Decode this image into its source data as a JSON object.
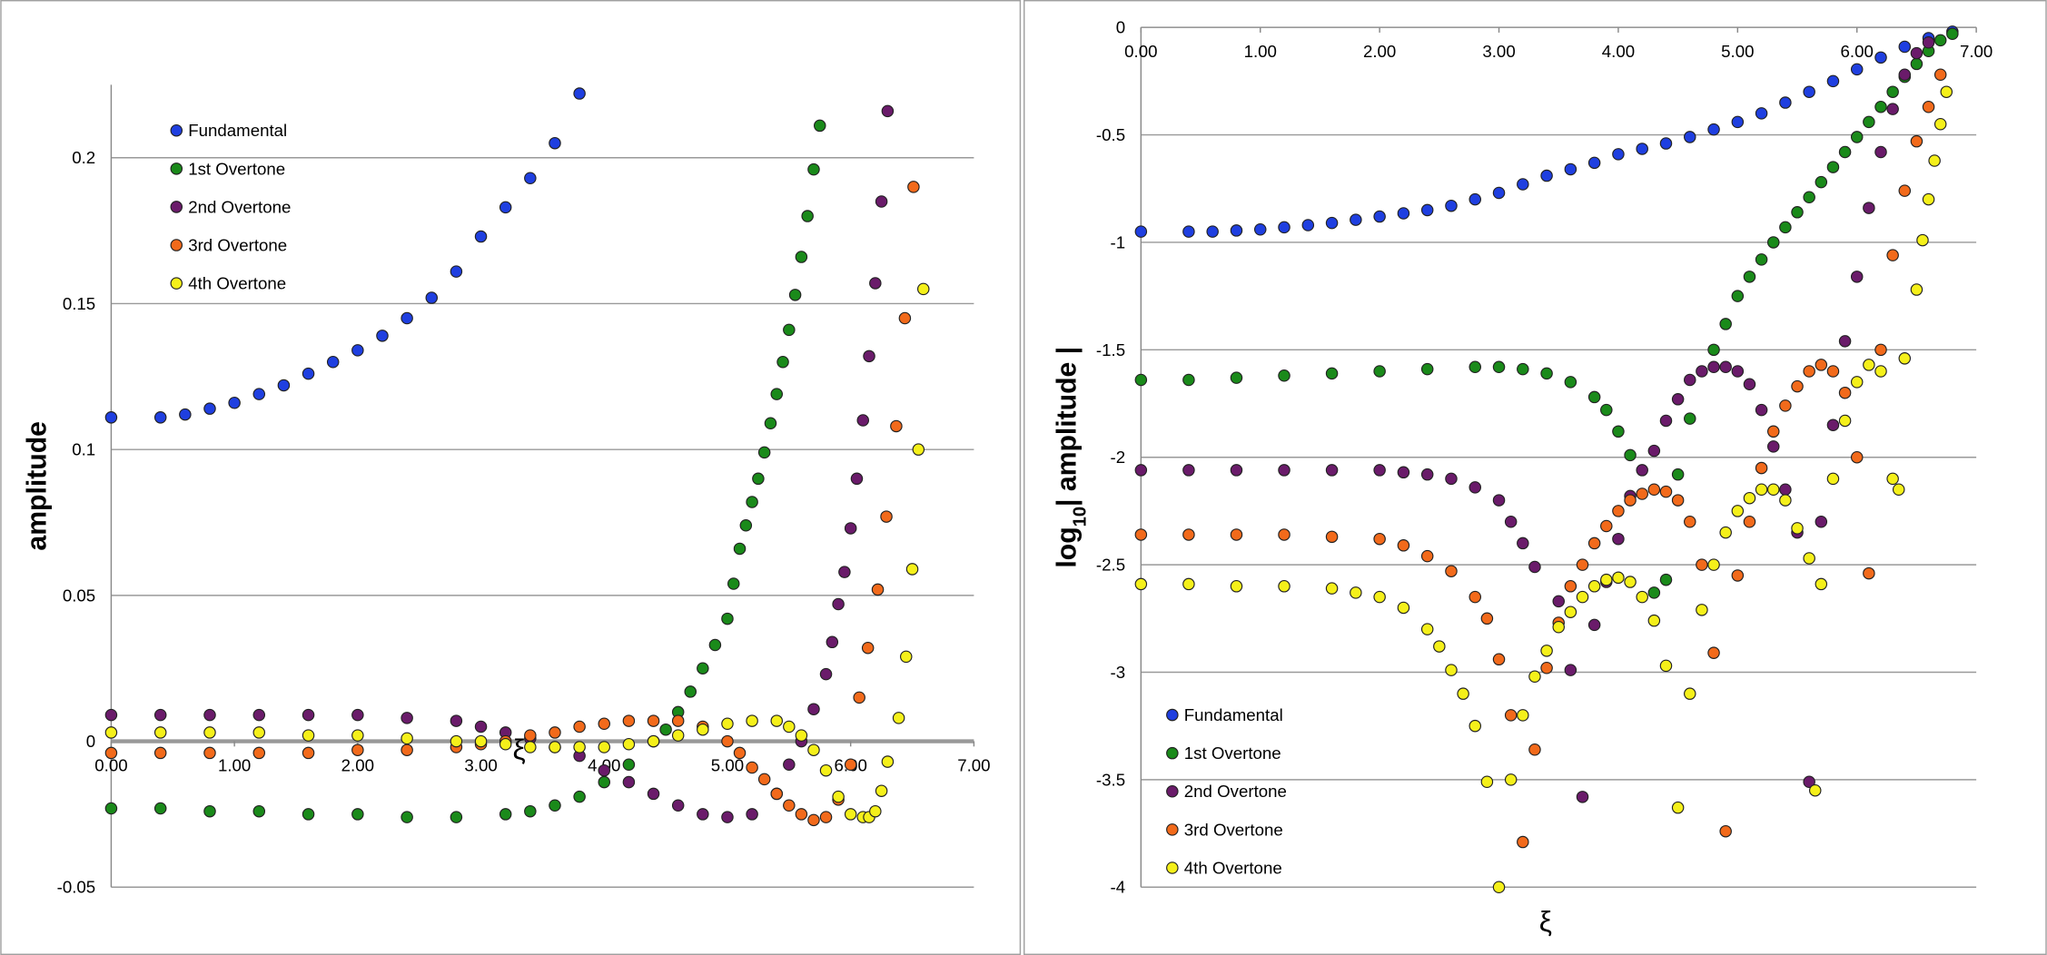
{
  "chart_data": [
    {
      "type": "scatter",
      "ylabel": "amplitude",
      "xlabel": "ξ",
      "xlim": [
        0,
        7
      ],
      "ylim": [
        -0.05,
        0.225
      ],
      "x_axis_position": "zero",
      "legend_position": "upper left",
      "grid": true,
      "xticks": [
        {
          "value": 0,
          "label": "0.00"
        },
        {
          "value": 1,
          "label": "1.00"
        },
        {
          "value": 2,
          "label": "2.00"
        },
        {
          "value": 3,
          "label": "3.00"
        },
        {
          "value": 4,
          "label": "4.00"
        },
        {
          "value": 5,
          "label": "5.00"
        },
        {
          "value": 6,
          "label": "6.00"
        },
        {
          "value": 7,
          "label": "7.00"
        }
      ],
      "yticks": [
        -0.05,
        0,
        0.05,
        0.1,
        0.15,
        0.2
      ],
      "series": [
        {
          "name": "Fundamental",
          "color": "#1f3fe0",
          "x": [
            0,
            0.4,
            0.6,
            0.8,
            1.0,
            1.2,
            1.4,
            1.6,
            1.8,
            2.0,
            2.2,
            2.4,
            2.6,
            2.8,
            3.0,
            3.2,
            3.4,
            3.6,
            3.8
          ],
          "values": [
            0.111,
            0.111,
            0.112,
            0.114,
            0.116,
            0.119,
            0.122,
            0.126,
            0.13,
            0.134,
            0.139,
            0.145,
            0.152,
            0.161,
            0.173,
            0.183,
            0.193,
            0.205,
            0.222
          ]
        },
        {
          "name": "1st Overtone",
          "color": "#1a8a1a",
          "x": [
            0,
            0.4,
            0.8,
            1.2,
            1.6,
            2.0,
            2.4,
            2.8,
            3.2,
            3.4,
            3.6,
            3.8,
            4.0,
            4.2,
            4.4,
            4.5,
            4.6,
            4.7,
            4.8,
            4.9,
            5.0,
            5.05,
            5.1,
            5.15,
            5.2,
            5.25,
            5.3,
            5.35,
            5.4,
            5.45,
            5.5,
            5.55,
            5.6,
            5.65,
            5.7,
            5.75
          ],
          "values": [
            -0.023,
            -0.023,
            -0.024,
            -0.024,
            -0.025,
            -0.025,
            -0.026,
            -0.026,
            -0.025,
            -0.024,
            -0.022,
            -0.019,
            -0.014,
            -0.008,
            0.0,
            0.004,
            0.01,
            0.017,
            0.025,
            0.033,
            0.042,
            0.054,
            0.066,
            0.074,
            0.082,
            0.09,
            0.099,
            0.109,
            0.119,
            0.13,
            0.141,
            0.153,
            0.166,
            0.18,
            0.196,
            0.211
          ]
        },
        {
          "name": "2nd Overtone",
          "color": "#6a1b6a",
          "x": [
            0,
            0.4,
            0.8,
            1.2,
            1.6,
            2.0,
            2.4,
            2.8,
            3.0,
            3.2,
            3.4,
            3.6,
            3.8,
            4.0,
            4.2,
            4.4,
            4.6,
            4.8,
            5.0,
            5.2,
            5.4,
            5.5,
            5.6,
            5.7,
            5.8,
            5.85,
            5.9,
            5.95,
            6.0,
            6.05,
            6.1,
            6.15,
            6.2,
            6.25,
            6.3
          ],
          "values": [
            0.009,
            0.009,
            0.009,
            0.009,
            0.009,
            0.009,
            0.008,
            0.007,
            0.005,
            0.003,
            0.001,
            -0.002,
            -0.005,
            -0.01,
            -0.014,
            -0.018,
            -0.022,
            -0.025,
            -0.026,
            -0.025,
            -0.018,
            -0.008,
            0.0,
            0.011,
            0.023,
            0.034,
            0.047,
            0.058,
            0.073,
            0.09,
            0.11,
            0.132,
            0.157,
            0.185,
            0.216
          ]
        },
        {
          "name": "3rd Overtone",
          "color": "#f26a1b",
          "x": [
            0,
            0.4,
            0.8,
            1.2,
            1.6,
            2.0,
            2.4,
            2.8,
            3.0,
            3.2,
            3.4,
            3.6,
            3.8,
            4.0,
            4.2,
            4.4,
            4.6,
            4.8,
            5.0,
            5.1,
            5.2,
            5.3,
            5.4,
            5.5,
            5.6,
            5.7,
            5.8,
            5.9,
            6.0,
            6.07,
            6.14,
            6.22,
            6.29,
            6.37,
            6.44,
            6.51
          ],
          "values": [
            -0.004,
            -0.004,
            -0.004,
            -0.004,
            -0.004,
            -0.003,
            -0.003,
            -0.002,
            -0.001,
            0.0,
            0.002,
            0.003,
            0.005,
            0.006,
            0.007,
            0.007,
            0.007,
            0.005,
            0.0,
            -0.004,
            -0.009,
            -0.013,
            -0.018,
            -0.022,
            -0.025,
            -0.027,
            -0.026,
            -0.02,
            -0.008,
            0.015,
            0.032,
            0.052,
            0.077,
            0.108,
            0.145,
            0.19
          ]
        },
        {
          "name": "4th Overtone",
          "color": "#f5f01a",
          "x": [
            0,
            0.4,
            0.8,
            1.2,
            1.6,
            2.0,
            2.4,
            2.8,
            3.0,
            3.2,
            3.4,
            3.6,
            3.8,
            4.0,
            4.2,
            4.4,
            4.6,
            4.8,
            5.0,
            5.2,
            5.4,
            5.5,
            5.6,
            5.7,
            5.8,
            5.9,
            6.0,
            6.1,
            6.15,
            6.2,
            6.25,
            6.3,
            6.39,
            6.45,
            6.5,
            6.55,
            6.59
          ],
          "values": [
            0.003,
            0.003,
            0.003,
            0.003,
            0.002,
            0.002,
            0.001,
            0.0,
            0.0,
            -0.001,
            -0.002,
            -0.002,
            -0.002,
            -0.002,
            -0.001,
            0.0,
            0.002,
            0.004,
            0.006,
            0.007,
            0.007,
            0.005,
            0.002,
            -0.003,
            -0.01,
            -0.019,
            -0.025,
            -0.026,
            -0.026,
            -0.024,
            -0.017,
            -0.007,
            0.008,
            0.029,
            0.059,
            0.1,
            0.155
          ]
        }
      ]
    },
    {
      "type": "scatter",
      "ylabel": "log",
      "ylabel_subscript": "10",
      "ylabel_suffix": "| amplitude |",
      "xlabel": "ξ",
      "xlim": [
        0,
        7
      ],
      "ylim": [
        -4,
        0
      ],
      "x_axis_position": "top",
      "legend_position": "lower left",
      "grid": true,
      "xticks": [
        {
          "value": 0,
          "label": "0.00"
        },
        {
          "value": 1,
          "label": "1.00"
        },
        {
          "value": 2,
          "label": "2.00"
        },
        {
          "value": 3,
          "label": "3.00"
        },
        {
          "value": 4,
          "label": "4.00"
        },
        {
          "value": 5,
          "label": "5.00"
        },
        {
          "value": 6,
          "label": "6.00"
        },
        {
          "value": 7,
          "label": "7.00"
        }
      ],
      "yticks": [
        0,
        -0.5,
        -1,
        -1.5,
        -2,
        -2.5,
        -3,
        -3.5,
        -4
      ],
      "series": [
        {
          "name": "Fundamental",
          "color": "#1f3fe0",
          "x": [
            0,
            0.4,
            0.6,
            0.8,
            1.0,
            1.2,
            1.4,
            1.6,
            1.8,
            2.0,
            2.2,
            2.4,
            2.6,
            2.8,
            3.0,
            3.2,
            3.4,
            3.6,
            3.8,
            4.0,
            4.2,
            4.4,
            4.6,
            4.8,
            5.0,
            5.2,
            5.4,
            5.6,
            5.8,
            6.0,
            6.2,
            6.4,
            6.6,
            6.8
          ],
          "values": [
            -0.95,
            -0.95,
            -0.95,
            -0.945,
            -0.94,
            -0.93,
            -0.92,
            -0.91,
            -0.895,
            -0.88,
            -0.865,
            -0.85,
            -0.83,
            -0.8,
            -0.77,
            -0.73,
            -0.69,
            -0.66,
            -0.63,
            -0.59,
            -0.565,
            -0.54,
            -0.51,
            -0.475,
            -0.44,
            -0.4,
            -0.35,
            -0.3,
            -0.25,
            -0.195,
            -0.14,
            -0.09,
            -0.05,
            -0.02
          ]
        },
        {
          "name": "1st Overtone",
          "color": "#1a8a1a",
          "x": [
            0,
            0.4,
            0.8,
            1.2,
            1.6,
            2.0,
            2.4,
            2.8,
            3.0,
            3.2,
            3.4,
            3.6,
            3.8,
            3.9,
            4.0,
            4.1,
            4.3,
            4.4,
            4.5,
            4.6,
            4.8,
            4.9,
            5.0,
            5.1,
            5.2,
            5.3,
            5.4,
            5.5,
            5.6,
            5.7,
            5.8,
            5.9,
            6.0,
            6.1,
            6.2,
            6.3,
            6.4,
            6.5,
            6.6,
            6.7,
            6.8
          ],
          "values": [
            -1.64,
            -1.64,
            -1.63,
            -1.62,
            -1.61,
            -1.6,
            -1.59,
            -1.58,
            -1.58,
            -1.59,
            -1.61,
            -1.65,
            -1.72,
            -1.78,
            -1.88,
            -1.99,
            -2.63,
            -2.57,
            -2.08,
            -1.82,
            -1.5,
            -1.38,
            -1.25,
            -1.16,
            -1.08,
            -1.0,
            -0.93,
            -0.86,
            -0.79,
            -0.72,
            -0.65,
            -0.58,
            -0.51,
            -0.44,
            -0.37,
            -0.3,
            -0.23,
            -0.17,
            -0.11,
            -0.06,
            -0.03
          ]
        },
        {
          "name": "2nd Overtone",
          "color": "#6a1b6a",
          "x": [
            0,
            0.4,
            0.8,
            1.2,
            1.6,
            2.0,
            2.2,
            2.4,
            2.6,
            2.8,
            3.0,
            3.1,
            3.2,
            3.3,
            3.5,
            3.6,
            3.7,
            3.8,
            3.9,
            4.0,
            4.1,
            4.2,
            4.3,
            4.4,
            4.5,
            4.6,
            4.7,
            4.8,
            4.9,
            5.0,
            5.1,
            5.2,
            5.3,
            5.4,
            5.5,
            5.6,
            5.7,
            5.8,
            5.9,
            6.0,
            6.1,
            6.2,
            6.3,
            6.4,
            6.5,
            6.6
          ],
          "values": [
            -2.06,
            -2.06,
            -2.06,
            -2.06,
            -2.06,
            -2.06,
            -2.07,
            -2.08,
            -2.1,
            -2.14,
            -2.2,
            -2.3,
            -2.4,
            -2.51,
            -2.67,
            -2.99,
            -3.58,
            -2.78,
            -2.58,
            -2.38,
            -2.18,
            -2.06,
            -1.97,
            -1.83,
            -1.73,
            -1.64,
            -1.6,
            -1.58,
            -1.58,
            -1.6,
            -1.66,
            -1.78,
            -1.95,
            -2.15,
            -2.35,
            -3.51,
            -2.3,
            -1.85,
            -1.46,
            -1.16,
            -0.84,
            -0.58,
            -0.38,
            -0.22,
            -0.12,
            -0.07
          ]
        },
        {
          "name": "3rd Overtone",
          "color": "#f26a1b",
          "x": [
            0,
            0.4,
            0.8,
            1.2,
            1.6,
            2.0,
            2.2,
            2.4,
            2.6,
            2.8,
            2.9,
            3.0,
            3.1,
            3.2,
            3.3,
            3.4,
            3.5,
            3.6,
            3.7,
            3.8,
            3.9,
            4.0,
            4.1,
            4.2,
            4.3,
            4.4,
            4.5,
            4.6,
            4.7,
            4.8,
            4.9,
            5.0,
            5.1,
            5.2,
            5.3,
            5.4,
            5.5,
            5.6,
            5.7,
            5.8,
            5.9,
            6.0,
            6.1,
            6.2,
            6.3,
            6.4,
            6.5,
            6.6,
            6.7
          ],
          "values": [
            -2.36,
            -2.36,
            -2.36,
            -2.36,
            -2.37,
            -2.38,
            -2.41,
            -2.46,
            -2.53,
            -2.65,
            -2.75,
            -2.94,
            -3.2,
            -3.79,
            -3.36,
            -2.98,
            -2.77,
            -2.6,
            -2.5,
            -2.4,
            -2.32,
            -2.25,
            -2.2,
            -2.17,
            -2.15,
            -2.16,
            -2.2,
            -2.3,
            -2.5,
            -2.91,
            -3.74,
            -2.55,
            -2.3,
            -2.05,
            -1.88,
            -1.76,
            -1.67,
            -1.6,
            -1.57,
            -1.6,
            -1.7,
            -2.0,
            -2.54,
            -1.5,
            -1.06,
            -0.76,
            -0.53,
            -0.37,
            -0.22
          ]
        },
        {
          "name": "4th Overtone",
          "color": "#f5f01a",
          "x": [
            0,
            0.4,
            0.8,
            1.2,
            1.6,
            1.8,
            2.0,
            2.2,
            2.4,
            2.5,
            2.6,
            2.7,
            2.8,
            2.9,
            3.0,
            3.1,
            3.2,
            3.3,
            3.4,
            3.5,
            3.6,
            3.7,
            3.8,
            3.9,
            4.0,
            4.1,
            4.2,
            4.3,
            4.4,
            4.5,
            4.6,
            4.7,
            4.8,
            4.9,
            5.0,
            5.1,
            5.2,
            5.3,
            5.4,
            5.5,
            5.6,
            5.65,
            5.7,
            5.8,
            5.9,
            6.0,
            6.1,
            6.2,
            6.3,
            6.35,
            6.4,
            6.5,
            6.55,
            6.6,
            6.65,
            6.7,
            6.75
          ],
          "values": [
            -2.59,
            -2.59,
            -2.6,
            -2.6,
            -2.61,
            -2.63,
            -2.65,
            -2.7,
            -2.8,
            -2.88,
            -2.99,
            -3.1,
            -3.25,
            -3.51,
            -4,
            -3.5,
            -3.2,
            -3.02,
            -2.9,
            -2.79,
            -2.72,
            -2.65,
            -2.6,
            -2.57,
            -2.56,
            -2.58,
            -2.65,
            -2.76,
            -2.97,
            -3.63,
            -3.1,
            -2.71,
            -2.5,
            -2.35,
            -2.25,
            -2.19,
            -2.15,
            -2.15,
            -2.2,
            -2.33,
            -2.47,
            -3.55,
            -2.59,
            -2.1,
            -1.83,
            -1.65,
            -1.57,
            -1.6,
            -2.1,
            -2.15,
            -1.54,
            -1.22,
            -0.99,
            -0.8,
            -0.62,
            -0.45,
            -0.3
          ]
        }
      ]
    }
  ]
}
